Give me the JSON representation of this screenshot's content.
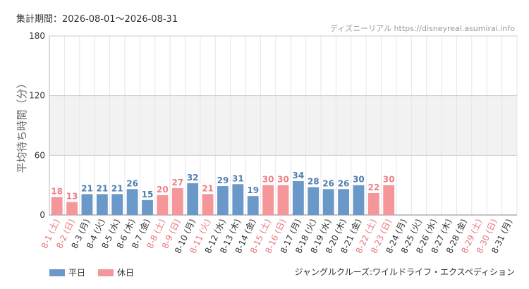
{
  "header": {
    "period_label": "集計期間：2026-08-01〜2026-08-31",
    "credit": "ディズニーリアル https://disneyreal.asumirai.info"
  },
  "legend": {
    "weekday_label": "平日",
    "holiday_label": "休日"
  },
  "footer": {
    "attraction_name": "ジャングルクルーズ:ワイルドライフ・エクスペディション"
  },
  "colors": {
    "weekday": "#6a99c9",
    "holiday": "#f4969a",
    "weekday_text": "#4f7fb1",
    "holiday_text": "#ef7f86",
    "axis_text_weekday": "#333333",
    "axis_text_holiday": "#e8767c",
    "band": "#f2f2f2",
    "grid": "#e6e6e6"
  },
  "chart_data": {
    "type": "bar",
    "ylabel": "平均待ち時間（分）",
    "ylim": [
      0,
      180
    ],
    "yticks": [
      0,
      60,
      120,
      180
    ],
    "shaded_band": [
      60,
      120
    ],
    "categories": [
      "8-1 (土)",
      "8-2 (日)",
      "8-3 (月)",
      "8-4 (火)",
      "8-5 (水)",
      "8-6 (木)",
      "8-7 (金)",
      "8-8 (土)",
      "8-9 (日)",
      "8-10 (月)",
      "8-11 (火)",
      "8-12 (水)",
      "8-13 (木)",
      "8-14 (金)",
      "8-15 (土)",
      "8-16 (日)",
      "8-17 (月)",
      "8-18 (火)",
      "8-19 (水)",
      "8-20 (木)",
      "8-21 (金)",
      "8-22 (土)",
      "8-23 (日)",
      "8-24 (月)",
      "8-25 (火)",
      "8-26 (水)",
      "8-27 (木)",
      "8-28 (金)",
      "8-29 (土)",
      "8-30 (日)",
      "8-31 (月)"
    ],
    "day_type": [
      "休日",
      "休日",
      "平日",
      "平日",
      "平日",
      "平日",
      "平日",
      "休日",
      "休日",
      "平日",
      "休日",
      "平日",
      "平日",
      "平日",
      "休日",
      "休日",
      "平日",
      "平日",
      "平日",
      "平日",
      "平日",
      "休日",
      "休日",
      "平日",
      "平日",
      "平日",
      "平日",
      "平日",
      "休日",
      "休日",
      "平日"
    ],
    "values": [
      18,
      13,
      21,
      21,
      21,
      26,
      15,
      20,
      27,
      32,
      21,
      29,
      31,
      19,
      30,
      30,
      34,
      28,
      26,
      26,
      30,
      22,
      30,
      null,
      null,
      null,
      null,
      null,
      null,
      null,
      null
    ]
  }
}
